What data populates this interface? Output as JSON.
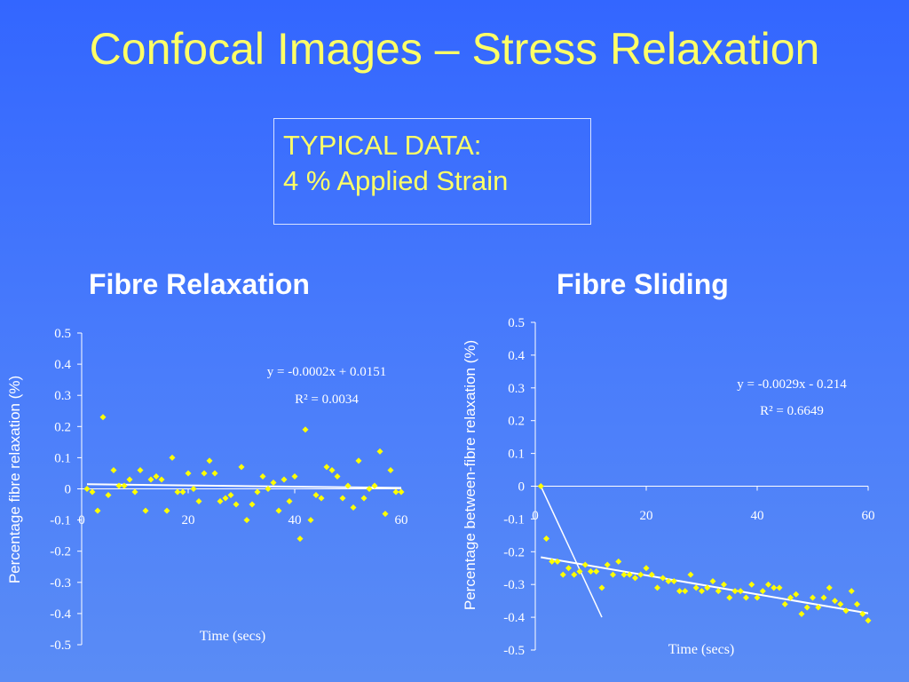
{
  "slide": {
    "title": "Confocal Images – Stress Relaxation",
    "info_line1": "TYPICAL DATA:",
    "info_line2": "4 % Applied Strain"
  },
  "colors": {
    "points": "#ffff00",
    "text": "#ffff66",
    "axis": "#ffffff",
    "trend": "#ffffff"
  },
  "chart_data": [
    {
      "type": "scatter",
      "title": "Fibre Relaxation",
      "xlabel": "Time (secs)",
      "ylabel": "Percentage fibre relaxation (%)",
      "xlim": [
        0,
        60
      ],
      "ylim": [
        -0.5,
        0.5
      ],
      "xticks": [
        "0",
        "20",
        "40",
        "60"
      ],
      "yticks": [
        "0.5",
        "0.4",
        "0.3",
        "0.2",
        "0.1",
        "0",
        "-0.1",
        "-0.2",
        "-0.3",
        "-0.4",
        "-0.5"
      ],
      "grid": false,
      "trendline": {
        "slope": -0.0002,
        "intercept": 0.0151
      },
      "equation": "y = -0.0002x + 0.0151",
      "r2": "R² = 0.0034",
      "x": [
        1,
        2,
        3,
        4,
        5,
        6,
        7,
        8,
        9,
        10,
        11,
        12,
        13,
        14,
        15,
        16,
        17,
        18,
        19,
        20,
        21,
        22,
        23,
        24,
        25,
        26,
        27,
        28,
        29,
        30,
        31,
        32,
        33,
        34,
        35,
        36,
        37,
        38,
        39,
        40,
        41,
        42,
        43,
        44,
        45,
        46,
        47,
        48,
        49,
        50,
        51,
        52,
        53,
        54,
        55,
        56,
        57,
        58,
        59,
        60
      ],
      "y": [
        0.0,
        -0.01,
        -0.07,
        0.23,
        -0.02,
        0.06,
        0.01,
        0.01,
        0.03,
        -0.01,
        0.06,
        -0.07,
        0.03,
        0.04,
        0.03,
        -0.07,
        0.1,
        -0.01,
        -0.01,
        0.05,
        0.0,
        -0.04,
        0.05,
        0.09,
        0.05,
        -0.04,
        -0.03,
        -0.02,
        -0.05,
        0.07,
        -0.1,
        -0.05,
        -0.01,
        0.04,
        0.0,
        0.02,
        -0.07,
        0.03,
        -0.04,
        0.04,
        -0.16,
        0.19,
        -0.1,
        -0.02,
        -0.03,
        0.07,
        0.06,
        0.04,
        -0.03,
        0.01,
        -0.06,
        0.09,
        -0.03,
        0.0,
        0.01,
        0.12,
        -0.08,
        0.06,
        -0.01,
        -0.01
      ]
    },
    {
      "type": "scatter",
      "title": "Fibre Sliding",
      "xlabel": "Time (secs)",
      "ylabel": "Percentage between-fibre relaxation (%)",
      "xlim": [
        0,
        60
      ],
      "ylim": [
        -0.5,
        0.5
      ],
      "xticks": [
        "0",
        "20",
        "40",
        "60"
      ],
      "yticks": [
        "0.5",
        "0.4",
        "0.3",
        "0.2",
        "0.1",
        "0",
        "-0.1",
        "-0.2",
        "-0.3",
        "-0.4",
        "-0.5"
      ],
      "grid": false,
      "trendline": {
        "slope": -0.0029,
        "intercept": -0.214
      },
      "extra_line": [
        [
          1,
          0.0
        ],
        [
          12,
          -0.4
        ]
      ],
      "equation": "y = -0.0029x - 0.214",
      "r2": "R² = 0.6649",
      "x": [
        1,
        2,
        3,
        4,
        5,
        6,
        7,
        8,
        9,
        10,
        11,
        12,
        13,
        14,
        15,
        16,
        17,
        18,
        19,
        20,
        21,
        22,
        23,
        24,
        25,
        26,
        27,
        28,
        29,
        30,
        31,
        32,
        33,
        34,
        35,
        36,
        37,
        38,
        39,
        40,
        41,
        42,
        43,
        44,
        45,
        46,
        47,
        48,
        49,
        50,
        51,
        52,
        53,
        54,
        55,
        56,
        57,
        58,
        59,
        60
      ],
      "y": [
        0.0,
        -0.16,
        -0.23,
        -0.23,
        -0.27,
        -0.25,
        -0.27,
        -0.26,
        -0.24,
        -0.26,
        -0.26,
        -0.31,
        -0.24,
        -0.27,
        -0.23,
        -0.27,
        -0.27,
        -0.28,
        -0.27,
        -0.25,
        -0.27,
        -0.31,
        -0.28,
        -0.29,
        -0.29,
        -0.32,
        -0.32,
        -0.27,
        -0.31,
        -0.32,
        -0.31,
        -0.29,
        -0.32,
        -0.3,
        -0.34,
        -0.32,
        -0.32,
        -0.34,
        -0.3,
        -0.34,
        -0.32,
        -0.3,
        -0.31,
        -0.31,
        -0.36,
        -0.34,
        -0.33,
        -0.39,
        -0.37,
        -0.34,
        -0.37,
        -0.34,
        -0.31,
        -0.35,
        -0.36,
        -0.38,
        -0.32,
        -0.36,
        -0.39,
        -0.41
      ]
    }
  ]
}
